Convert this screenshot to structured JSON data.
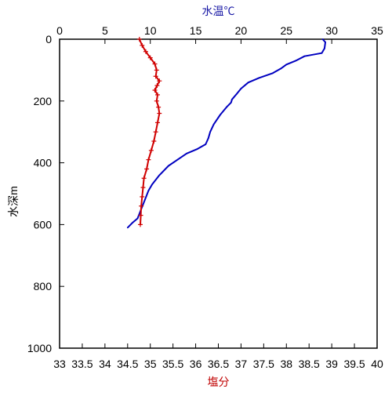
{
  "chart_data": {
    "type": "line",
    "x_top_label": "水温℃",
    "x_bottom_label": "塩分",
    "y_label": "水深m",
    "y_reversed": true,
    "ylim": [
      0,
      1000
    ],
    "y_ticks": [
      "0",
      "200",
      "400",
      "600",
      "800",
      "1000"
    ],
    "x_top_lim": [
      0,
      35
    ],
    "x_top_ticks": [
      "0",
      "5",
      "10",
      "15",
      "20",
      "25",
      "30",
      "35"
    ],
    "x_bottom_lim": [
      33,
      40
    ],
    "x_bottom_ticks": [
      "33",
      "33.5",
      "34",
      "34.5",
      "35",
      "35.5",
      "36",
      "36.5",
      "37",
      "37.5",
      "38",
      "38.5",
      "39",
      "39.5",
      "40"
    ],
    "series": [
      {
        "axis": "top",
        "color": "#0000c0",
        "points": [
          {
            "x": 29.0,
            "y": 0
          },
          {
            "x": 29.3,
            "y": 10
          },
          {
            "x": 29.2,
            "y": 30
          },
          {
            "x": 28.9,
            "y": 45
          },
          {
            "x": 27.0,
            "y": 55
          },
          {
            "x": 26.0,
            "y": 70
          },
          {
            "x": 25.0,
            "y": 82
          },
          {
            "x": 24.4,
            "y": 95
          },
          {
            "x": 23.5,
            "y": 110
          },
          {
            "x": 22.0,
            "y": 125
          },
          {
            "x": 20.8,
            "y": 140
          },
          {
            "x": 20.0,
            "y": 160
          },
          {
            "x": 19.5,
            "y": 178
          },
          {
            "x": 19.0,
            "y": 195
          },
          {
            "x": 18.9,
            "y": 205
          },
          {
            "x": 18.4,
            "y": 220
          },
          {
            "x": 17.7,
            "y": 245
          },
          {
            "x": 17.0,
            "y": 275
          },
          {
            "x": 16.6,
            "y": 300
          },
          {
            "x": 16.4,
            "y": 320
          },
          {
            "x": 16.1,
            "y": 340
          },
          {
            "x": 15.2,
            "y": 355
          },
          {
            "x": 14.0,
            "y": 370
          },
          {
            "x": 13.0,
            "y": 390
          },
          {
            "x": 12.0,
            "y": 410
          },
          {
            "x": 11.0,
            "y": 440
          },
          {
            "x": 10.2,
            "y": 470
          },
          {
            "x": 9.8,
            "y": 490
          },
          {
            "x": 9.4,
            "y": 520
          },
          {
            "x": 9.0,
            "y": 550
          },
          {
            "x": 8.6,
            "y": 580
          },
          {
            "x": 8.0,
            "y": 595
          },
          {
            "x": 7.5,
            "y": 610
          }
        ]
      },
      {
        "axis": "bottom",
        "color": "#d00000",
        "points": [
          {
            "x": 34.76,
            "y": 0
          },
          {
            "x": 34.82,
            "y": 20
          },
          {
            "x": 34.9,
            "y": 40
          },
          {
            "x": 35.0,
            "y": 60
          },
          {
            "x": 35.1,
            "y": 80
          },
          {
            "x": 35.14,
            "y": 100
          },
          {
            "x": 35.12,
            "y": 120
          },
          {
            "x": 35.2,
            "y": 135
          },
          {
            "x": 35.15,
            "y": 150
          },
          {
            "x": 35.1,
            "y": 165
          },
          {
            "x": 35.16,
            "y": 180
          },
          {
            "x": 35.14,
            "y": 200
          },
          {
            "x": 35.18,
            "y": 220
          },
          {
            "x": 35.2,
            "y": 240
          },
          {
            "x": 35.16,
            "y": 270
          },
          {
            "x": 35.12,
            "y": 300
          },
          {
            "x": 35.08,
            "y": 330
          },
          {
            "x": 35.02,
            "y": 360
          },
          {
            "x": 34.96,
            "y": 390
          },
          {
            "x": 34.92,
            "y": 420
          },
          {
            "x": 34.86,
            "y": 450
          },
          {
            "x": 34.84,
            "y": 480
          },
          {
            "x": 34.82,
            "y": 510
          },
          {
            "x": 34.8,
            "y": 540
          },
          {
            "x": 34.79,
            "y": 570
          },
          {
            "x": 34.78,
            "y": 600
          }
        ]
      }
    ]
  }
}
